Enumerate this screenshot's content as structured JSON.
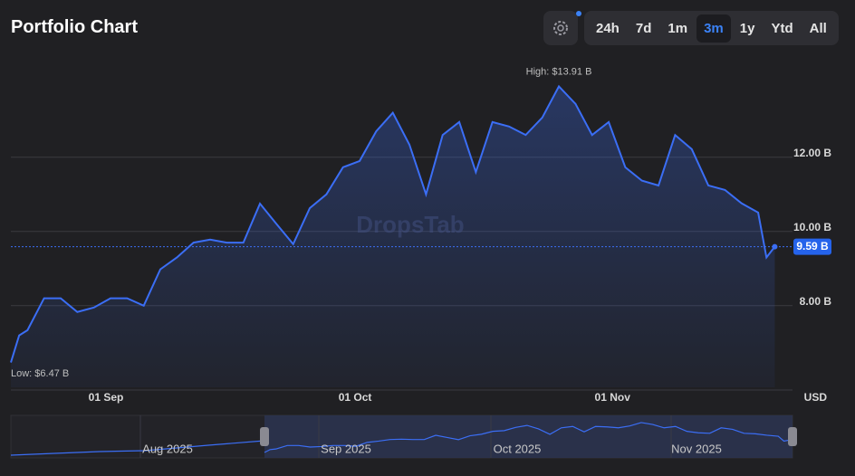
{
  "title": "Portfolio Chart",
  "timeframes": [
    "24h",
    "7d",
    "1m",
    "3m",
    "1y",
    "Ytd",
    "All"
  ],
  "active_timeframe": "3m",
  "chart_data": {
    "type": "area",
    "watermark": "DropsTab",
    "unit_label": "USD",
    "x": [
      0,
      1,
      2,
      4,
      6,
      8,
      10,
      12,
      14,
      16,
      18,
      20,
      22,
      24,
      26,
      28,
      30,
      32,
      34,
      36,
      38,
      40,
      42,
      44,
      46,
      48,
      50,
      52,
      54,
      56,
      58,
      60,
      62,
      64,
      66,
      68,
      70,
      72,
      74,
      76,
      78,
      80,
      82,
      84,
      86,
      88,
      90,
      91,
      92
    ],
    "series": [
      {
        "name": "Portfolio",
        "color": "#3b6ef5",
        "values": [
          6.47,
          7.2,
          7.34,
          8.2,
          8.2,
          7.83,
          7.95,
          8.2,
          8.2,
          8.0,
          8.98,
          9.3,
          9.7,
          9.78,
          9.7,
          9.7,
          10.75,
          10.2,
          9.66,
          10.63,
          11.0,
          11.73,
          11.9,
          12.7,
          13.2,
          12.34,
          11.0,
          12.6,
          12.95,
          11.6,
          12.95,
          12.83,
          12.6,
          13.07,
          13.91,
          13.44,
          12.6,
          12.95,
          11.73,
          11.37,
          11.24,
          12.6,
          12.22,
          11.24,
          11.12,
          10.76,
          10.51,
          9.3,
          9.59
        ]
      }
    ],
    "xlim": [
      0,
      92.5
    ],
    "xticks": [
      {
        "value": 12,
        "label": "01 Sep"
      },
      {
        "value": 42,
        "label": "01 Oct"
      },
      {
        "value": 73,
        "label": "01 Nov"
      }
    ],
    "ylim": [
      5.8,
      14.8
    ],
    "yticks": [
      {
        "value": 8,
        "label": "8.00 B"
      },
      {
        "value": 10,
        "label": "10.00 B"
      },
      {
        "value": 12,
        "label": "12.00 B"
      }
    ],
    "grid": true,
    "high": {
      "value": 13.91,
      "label": "High: $13.91 B"
    },
    "low": {
      "value": 6.47,
      "label": "Low: $6.47 B"
    },
    "current": {
      "value": 9.59,
      "label": "9.59 B"
    },
    "navigator_labels": [
      "Aug 2025",
      "Sep 2025",
      "Oct 2025",
      "Nov 2025"
    ]
  }
}
